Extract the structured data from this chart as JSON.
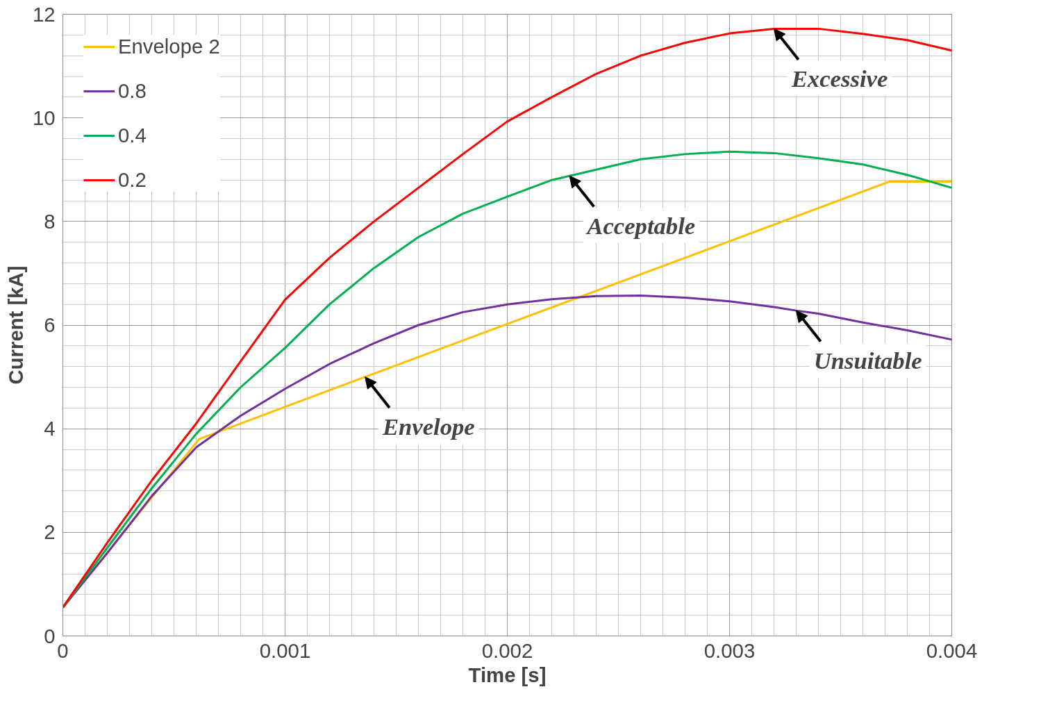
{
  "chart_data": {
    "type": "line",
    "xlabel": "Time [s]",
    "ylabel": "Current [kA]",
    "xlim": [
      0,
      0.004
    ],
    "ylim": [
      0,
      12
    ],
    "xticks": [
      0,
      0.001,
      0.002,
      0.003,
      0.004
    ],
    "yticks": [
      0,
      2,
      4,
      6,
      8,
      10,
      12
    ],
    "grid": true,
    "legend": "top left",
    "marker": "none",
    "line_style": "solid",
    "series": [
      {
        "name": "Envelope 2",
        "color": "#ffc000",
        "x": [
          0,
          0.000613,
          0.00136,
          0.00372,
          0.004
        ],
        "values": [
          0.55,
          3.8,
          5.0,
          8.77,
          8.77
        ]
      },
      {
        "name": "0.8",
        "color": "#7030a0",
        "x": [
          0,
          0.0002,
          0.0004,
          0.0006,
          0.0008,
          0.001,
          0.0012,
          0.0014,
          0.0016,
          0.0018,
          0.002,
          0.0022,
          0.0024,
          0.0026,
          0.0028,
          0.003,
          0.0032,
          0.0033,
          0.0034,
          0.0036,
          0.0038,
          0.004
        ],
        "values": [
          0.55,
          1.6,
          2.7,
          3.64,
          4.25,
          4.77,
          5.25,
          5.65,
          6.0,
          6.25,
          6.4,
          6.5,
          6.56,
          6.57,
          6.53,
          6.46,
          6.35,
          6.28,
          6.22,
          6.05,
          5.9,
          5.72
        ]
      },
      {
        "name": "0.4",
        "color": "#00b050",
        "x": [
          0,
          0.0002,
          0.0004,
          0.0006,
          0.0008,
          0.001,
          0.0012,
          0.0014,
          0.0016,
          0.0018,
          0.002,
          0.0022,
          0.00228,
          0.0024,
          0.0026,
          0.0028,
          0.003,
          0.0032,
          0.0034,
          0.0036,
          0.0038,
          0.004
        ],
        "values": [
          0.55,
          1.7,
          2.85,
          3.9,
          4.8,
          5.56,
          6.4,
          7.1,
          7.7,
          8.15,
          8.48,
          8.8,
          8.88,
          9.0,
          9.2,
          9.3,
          9.35,
          9.32,
          9.22,
          9.1,
          8.9,
          8.65
        ]
      },
      {
        "name": "0.2",
        "color": "#ff0000",
        "x": [
          0,
          0.0002,
          0.0004,
          0.0006,
          0.0008,
          0.001,
          0.0012,
          0.0014,
          0.0016,
          0.0018,
          0.002,
          0.0022,
          0.0024,
          0.0026,
          0.0028,
          0.003,
          0.0032,
          0.0034,
          0.0036,
          0.0038,
          0.004
        ],
        "values": [
          0.55,
          1.8,
          3.0,
          4.1,
          5.3,
          6.49,
          7.3,
          8.0,
          8.65,
          9.3,
          9.93,
          10.4,
          10.85,
          11.2,
          11.45,
          11.63,
          11.72,
          11.72,
          11.62,
          11.5,
          11.3
        ]
      }
    ],
    "annotations": [
      {
        "text": "Excessive",
        "x": 0.0032,
        "y": 11.72
      },
      {
        "text": "Acceptable",
        "x": 0.00228,
        "y": 8.88
      },
      {
        "text": "Unsuitable",
        "x": 0.0033,
        "y": 6.28
      },
      {
        "text": "Envelope",
        "x": 0.00136,
        "y": 5.0
      }
    ]
  }
}
